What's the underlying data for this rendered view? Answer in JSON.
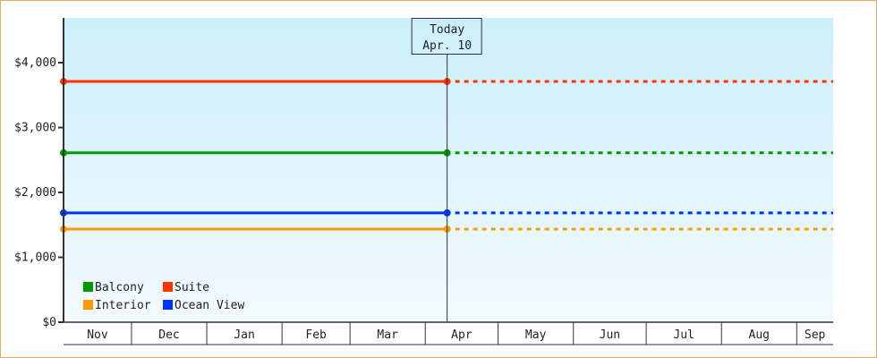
{
  "chart_data": {
    "type": "line",
    "title": "",
    "xlabel": "",
    "ylabel": "",
    "ylim": [
      0,
      4690
    ],
    "y_ticks": [
      "$0",
      "$1,000",
      "$2,000",
      "$3,000",
      "$4,000"
    ],
    "y_tick_values": [
      0,
      1000,
      2000,
      3000,
      4000
    ],
    "x_range": [
      "Nov 3",
      "Sep 16"
    ],
    "months": [
      "Nov",
      "Dec",
      "Jan",
      "Feb",
      "Mar",
      "Apr",
      "May",
      "Jun",
      "Jul",
      "Aug",
      "Sep"
    ],
    "today": {
      "label_line1": "Today",
      "label_line2": "Apr. 10",
      "date": "Apr 10"
    },
    "grid": false,
    "legend_placement": "bottom-left",
    "background_gradient": [
      "#cceffc",
      "#f3faff"
    ],
    "series": [
      {
        "name": "Balcony",
        "color": "#009900",
        "points": [
          {
            "x": "Nov 3",
            "y": 2610
          },
          {
            "x": "Apr 10",
            "y": 2610
          }
        ],
        "projection": {
          "x": "Sep 16",
          "y": 2610
        }
      },
      {
        "name": "Suite",
        "color": "#ff3300",
        "points": [
          {
            "x": "Nov 3",
            "y": 3710
          },
          {
            "x": "Apr 10",
            "y": 3710
          }
        ],
        "projection": {
          "x": "Sep 16",
          "y": 3710
        }
      },
      {
        "name": "Interior",
        "color": "#ff9900",
        "points": [
          {
            "x": "Nov 3",
            "y": 1435
          },
          {
            "x": "Apr 10",
            "y": 1435
          }
        ],
        "projection": {
          "x": "Sep 16",
          "y": 1435
        }
      },
      {
        "name": "Ocean View",
        "color": "#0033ff",
        "points": [
          {
            "x": "Nov 3",
            "y": 1685
          },
          {
            "x": "Apr 10",
            "y": 1685
          }
        ],
        "projection": {
          "x": "Sep 16",
          "y": 1685
        }
      }
    ]
  }
}
